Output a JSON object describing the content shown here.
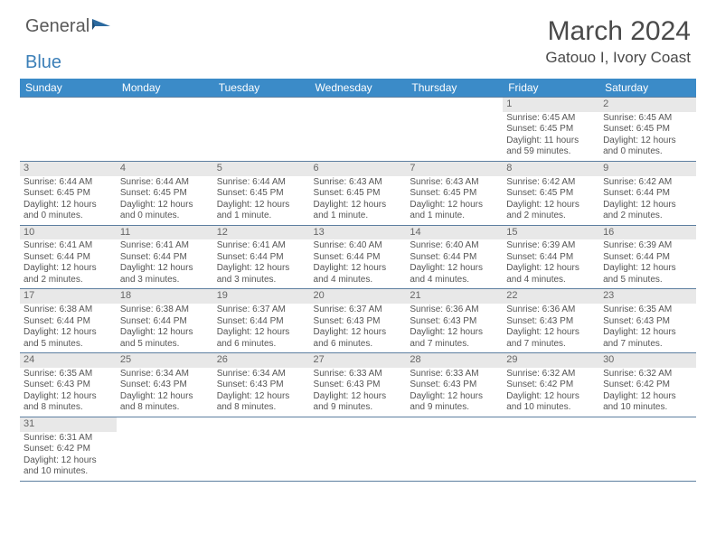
{
  "logo": {
    "text1": "General",
    "text2": "Blue"
  },
  "header": {
    "title": "March 2024",
    "subtitle": "Gatouo I, Ivory Coast"
  },
  "colors": {
    "header_bg": "#3b8bc8",
    "header_text": "#ffffff",
    "cell_border": "#5d7fa0",
    "daynum_bg": "#e8e8e8",
    "text": "#555555",
    "logo_gray": "#5a5a5a",
    "logo_blue": "#3b7fb8"
  },
  "fonts": {
    "title_pt": 30,
    "subtitle_pt": 17,
    "th_pt": 12,
    "cell_pt": 10,
    "daynum_pt": 11
  },
  "daysOfWeek": [
    "Sunday",
    "Monday",
    "Tuesday",
    "Wednesday",
    "Thursday",
    "Friday",
    "Saturday"
  ],
  "weeks": [
    [
      null,
      null,
      null,
      null,
      null,
      {
        "n": "1",
        "sr": "6:45 AM",
        "ss": "6:45 PM",
        "dl": "11 hours and 59 minutes."
      },
      {
        "n": "2",
        "sr": "6:45 AM",
        "ss": "6:45 PM",
        "dl": "12 hours and 0 minutes."
      }
    ],
    [
      {
        "n": "3",
        "sr": "6:44 AM",
        "ss": "6:45 PM",
        "dl": "12 hours and 0 minutes."
      },
      {
        "n": "4",
        "sr": "6:44 AM",
        "ss": "6:45 PM",
        "dl": "12 hours and 0 minutes."
      },
      {
        "n": "5",
        "sr": "6:44 AM",
        "ss": "6:45 PM",
        "dl": "12 hours and 1 minute."
      },
      {
        "n": "6",
        "sr": "6:43 AM",
        "ss": "6:45 PM",
        "dl": "12 hours and 1 minute."
      },
      {
        "n": "7",
        "sr": "6:43 AM",
        "ss": "6:45 PM",
        "dl": "12 hours and 1 minute."
      },
      {
        "n": "8",
        "sr": "6:42 AM",
        "ss": "6:45 PM",
        "dl": "12 hours and 2 minutes."
      },
      {
        "n": "9",
        "sr": "6:42 AM",
        "ss": "6:44 PM",
        "dl": "12 hours and 2 minutes."
      }
    ],
    [
      {
        "n": "10",
        "sr": "6:41 AM",
        "ss": "6:44 PM",
        "dl": "12 hours and 2 minutes."
      },
      {
        "n": "11",
        "sr": "6:41 AM",
        "ss": "6:44 PM",
        "dl": "12 hours and 3 minutes."
      },
      {
        "n": "12",
        "sr": "6:41 AM",
        "ss": "6:44 PM",
        "dl": "12 hours and 3 minutes."
      },
      {
        "n": "13",
        "sr": "6:40 AM",
        "ss": "6:44 PM",
        "dl": "12 hours and 4 minutes."
      },
      {
        "n": "14",
        "sr": "6:40 AM",
        "ss": "6:44 PM",
        "dl": "12 hours and 4 minutes."
      },
      {
        "n": "15",
        "sr": "6:39 AM",
        "ss": "6:44 PM",
        "dl": "12 hours and 4 minutes."
      },
      {
        "n": "16",
        "sr": "6:39 AM",
        "ss": "6:44 PM",
        "dl": "12 hours and 5 minutes."
      }
    ],
    [
      {
        "n": "17",
        "sr": "6:38 AM",
        "ss": "6:44 PM",
        "dl": "12 hours and 5 minutes."
      },
      {
        "n": "18",
        "sr": "6:38 AM",
        "ss": "6:44 PM",
        "dl": "12 hours and 5 minutes."
      },
      {
        "n": "19",
        "sr": "6:37 AM",
        "ss": "6:44 PM",
        "dl": "12 hours and 6 minutes."
      },
      {
        "n": "20",
        "sr": "6:37 AM",
        "ss": "6:43 PM",
        "dl": "12 hours and 6 minutes."
      },
      {
        "n": "21",
        "sr": "6:36 AM",
        "ss": "6:43 PM",
        "dl": "12 hours and 7 minutes."
      },
      {
        "n": "22",
        "sr": "6:36 AM",
        "ss": "6:43 PM",
        "dl": "12 hours and 7 minutes."
      },
      {
        "n": "23",
        "sr": "6:35 AM",
        "ss": "6:43 PM",
        "dl": "12 hours and 7 minutes."
      }
    ],
    [
      {
        "n": "24",
        "sr": "6:35 AM",
        "ss": "6:43 PM",
        "dl": "12 hours and 8 minutes."
      },
      {
        "n": "25",
        "sr": "6:34 AM",
        "ss": "6:43 PM",
        "dl": "12 hours and 8 minutes."
      },
      {
        "n": "26",
        "sr": "6:34 AM",
        "ss": "6:43 PM",
        "dl": "12 hours and 8 minutes."
      },
      {
        "n": "27",
        "sr": "6:33 AM",
        "ss": "6:43 PM",
        "dl": "12 hours and 9 minutes."
      },
      {
        "n": "28",
        "sr": "6:33 AM",
        "ss": "6:43 PM",
        "dl": "12 hours and 9 minutes."
      },
      {
        "n": "29",
        "sr": "6:32 AM",
        "ss": "6:42 PM",
        "dl": "12 hours and 10 minutes."
      },
      {
        "n": "30",
        "sr": "6:32 AM",
        "ss": "6:42 PM",
        "dl": "12 hours and 10 minutes."
      }
    ],
    [
      {
        "n": "31",
        "sr": "6:31 AM",
        "ss": "6:42 PM",
        "dl": "12 hours and 10 minutes."
      },
      null,
      null,
      null,
      null,
      null,
      null
    ]
  ],
  "labels": {
    "sunrise": "Sunrise: ",
    "sunset": "Sunset: ",
    "daylight": "Daylight: "
  }
}
